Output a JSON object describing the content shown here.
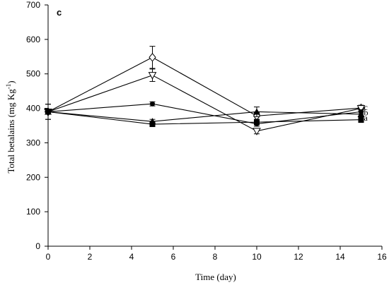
{
  "chart_data": {
    "type": "line",
    "panel_label": "c",
    "xlabel": "Time (day)",
    "ylabel": "Total betalains (mg Kg-1)",
    "ylabel_main": "Total betalains (mg Kg",
    "ylabel_sup": "-1",
    "ylabel_close": ")",
    "xlim": [
      0,
      16
    ],
    "ylim": [
      0,
      700
    ],
    "xticks": [
      0,
      2,
      4,
      6,
      8,
      10,
      12,
      14,
      16
    ],
    "yticks": [
      0,
      100,
      200,
      300,
      400,
      500,
      600,
      700
    ],
    "x": [
      0,
      5,
      10,
      15
    ],
    "series": [
      {
        "marker": "diamond-open",
        "values": [
          390,
          548,
          378,
          401
        ],
        "errors": [
          22,
          32,
          10,
          8
        ]
      },
      {
        "marker": "triangle-down-open",
        "values": [
          390,
          496,
          334,
          400
        ],
        "errors": [
          22,
          18,
          8,
          8
        ]
      },
      {
        "marker": "circle-filled",
        "values": [
          390,
          413,
          355,
          390
        ],
        "errors": [
          5,
          6,
          7,
          6
        ]
      },
      {
        "marker": "triangle-up-filled",
        "values": [
          390,
          362,
          390,
          383
        ],
        "errors": [
          5,
          6,
          14,
          6
        ]
      },
      {
        "marker": "square-filled",
        "values": [
          390,
          354,
          360,
          367
        ],
        "errors": [
          5,
          6,
          8,
          8
        ]
      }
    ],
    "end_labels": [
      {
        "text": "c",
        "y": 403
      },
      {
        "text": "b",
        "y": 388
      },
      {
        "text": "a",
        "y": 373
      }
    ]
  }
}
